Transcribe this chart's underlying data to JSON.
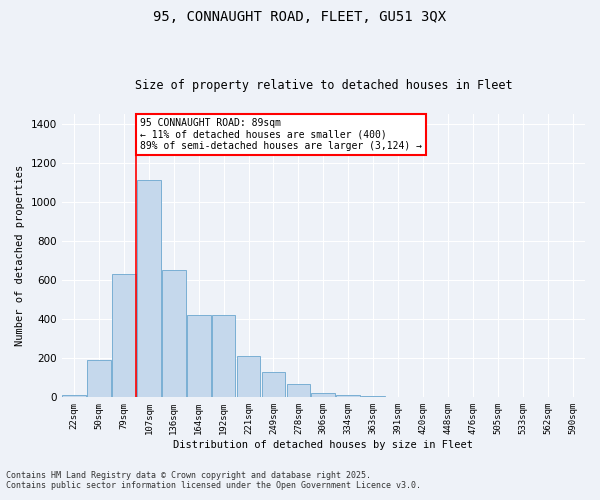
{
  "title1": "95, CONNAUGHT ROAD, FLEET, GU51 3QX",
  "title2": "Size of property relative to detached houses in Fleet",
  "xlabel": "Distribution of detached houses by size in Fleet",
  "ylabel": "Number of detached properties",
  "categories": [
    "22sqm",
    "50sqm",
    "79sqm",
    "107sqm",
    "136sqm",
    "164sqm",
    "192sqm",
    "221sqm",
    "249sqm",
    "278sqm",
    "306sqm",
    "334sqm",
    "363sqm",
    "391sqm",
    "420sqm",
    "448sqm",
    "476sqm",
    "505sqm",
    "533sqm",
    "562sqm",
    "590sqm"
  ],
  "values": [
    10,
    190,
    630,
    1110,
    650,
    420,
    420,
    210,
    130,
    70,
    20,
    12,
    5,
    2,
    0,
    0,
    0,
    0,
    0,
    0,
    0
  ],
  "bar_color": "#c5d8ec",
  "bar_edge_color": "#7aafd4",
  "vline_color": "red",
  "vline_x": 2.5,
  "annotation_text": "95 CONNAUGHT ROAD: 89sqm\n← 11% of detached houses are smaller (400)\n89% of semi-detached houses are larger (3,124) →",
  "annotation_box_color": "white",
  "annotation_box_edge": "red",
  "ylim": [
    0,
    1450
  ],
  "yticks": [
    0,
    200,
    400,
    600,
    800,
    1000,
    1200,
    1400
  ],
  "bg_color": "#eef2f8",
  "footer1": "Contains HM Land Registry data © Crown copyright and database right 2025.",
  "footer2": "Contains public sector information licensed under the Open Government Licence v3.0."
}
